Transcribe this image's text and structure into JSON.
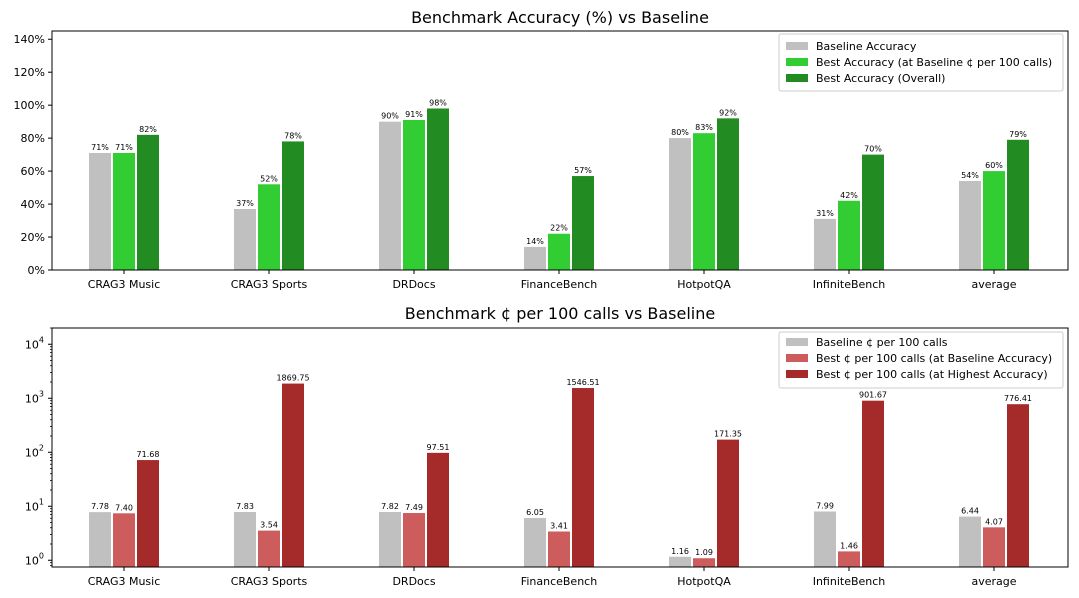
{
  "chart_data": [
    {
      "type": "bar",
      "title": "Benchmark Accuracy (%) vs Baseline",
      "categories": [
        "CRAG3 Music",
        "CRAG3 Sports",
        "DRDocs",
        "FinanceBench",
        "HotpotQA",
        "InfiniteBench",
        "average"
      ],
      "series": [
        {
          "name": "Baseline Accuracy",
          "color": "#c0c0c0",
          "values": [
            71,
            37,
            90,
            14,
            80,
            31,
            54
          ],
          "labels": [
            "71%",
            "37%",
            "90%",
            "14%",
            "80%",
            "31%",
            "54%"
          ]
        },
        {
          "name": "Best Accuracy (at Baseline ¢ per 100 calls)",
          "color": "#32cd32",
          "values": [
            71,
            52,
            91,
            22,
            83,
            42,
            60
          ],
          "labels": [
            "71%",
            "52%",
            "91%",
            "22%",
            "83%",
            "42%",
            "60%"
          ]
        },
        {
          "name": "Best Accuracy (Overall)",
          "color": "#228b22",
          "values": [
            82,
            78,
            98,
            57,
            92,
            70,
            79
          ],
          "labels": [
            "82%",
            "78%",
            "98%",
            "57%",
            "92%",
            "70%",
            "79%"
          ]
        }
      ],
      "ylim": [
        0,
        145
      ],
      "yscale": "linear",
      "yticks": [
        0,
        20,
        40,
        60,
        80,
        100,
        120,
        140
      ],
      "ytick_labels": [
        "0%",
        "20%",
        "40%",
        "60%",
        "80%",
        "100%",
        "120%",
        "140%"
      ],
      "legend": "top-right"
    },
    {
      "type": "bar",
      "title": "Benchmark ¢ per 100 calls vs Baseline",
      "categories": [
        "CRAG3 Music",
        "CRAG3 Sports",
        "DRDocs",
        "FinanceBench",
        "HotpotQA",
        "InfiniteBench",
        "average"
      ],
      "series": [
        {
          "name": "Baseline ¢ per 100 calls",
          "color": "#c0c0c0",
          "values": [
            7.78,
            7.83,
            7.82,
            6.05,
            1.16,
            7.99,
            6.44
          ],
          "labels": [
            "7.78",
            "7.83",
            "7.82",
            "6.05",
            "1.16",
            "7.99",
            "6.44"
          ]
        },
        {
          "name": "Best ¢ per 100 calls (at Baseline Accuracy)",
          "color": "#cd5c5c",
          "values": [
            7.4,
            3.54,
            7.49,
            3.41,
            1.09,
            1.46,
            4.07
          ],
          "labels": [
            "7.40",
            "3.54",
            "7.49",
            "3.41",
            "1.09",
            "1.46",
            "4.07"
          ]
        },
        {
          "name": "Best ¢ per 100 calls (at Highest Accuracy)",
          "color": "#a52a2a",
          "values": [
            71.68,
            1869.75,
            97.51,
            1546.51,
            171.35,
            901.67,
            776.41
          ],
          "labels": [
            "71.68",
            "1869.75",
            "97.51",
            "1546.51",
            "171.35",
            "901.67",
            "776.41"
          ]
        }
      ],
      "ylim": [
        0.75,
        20000
      ],
      "yscale": "log",
      "yticks": [
        1,
        10,
        100,
        1000,
        10000
      ],
      "ytick_labels": [
        [
          "10",
          "0"
        ],
        [
          "10",
          "1"
        ],
        [
          "10",
          "2"
        ],
        [
          "10",
          "3"
        ],
        [
          "10",
          "4"
        ]
      ],
      "legend": "top-right"
    }
  ]
}
